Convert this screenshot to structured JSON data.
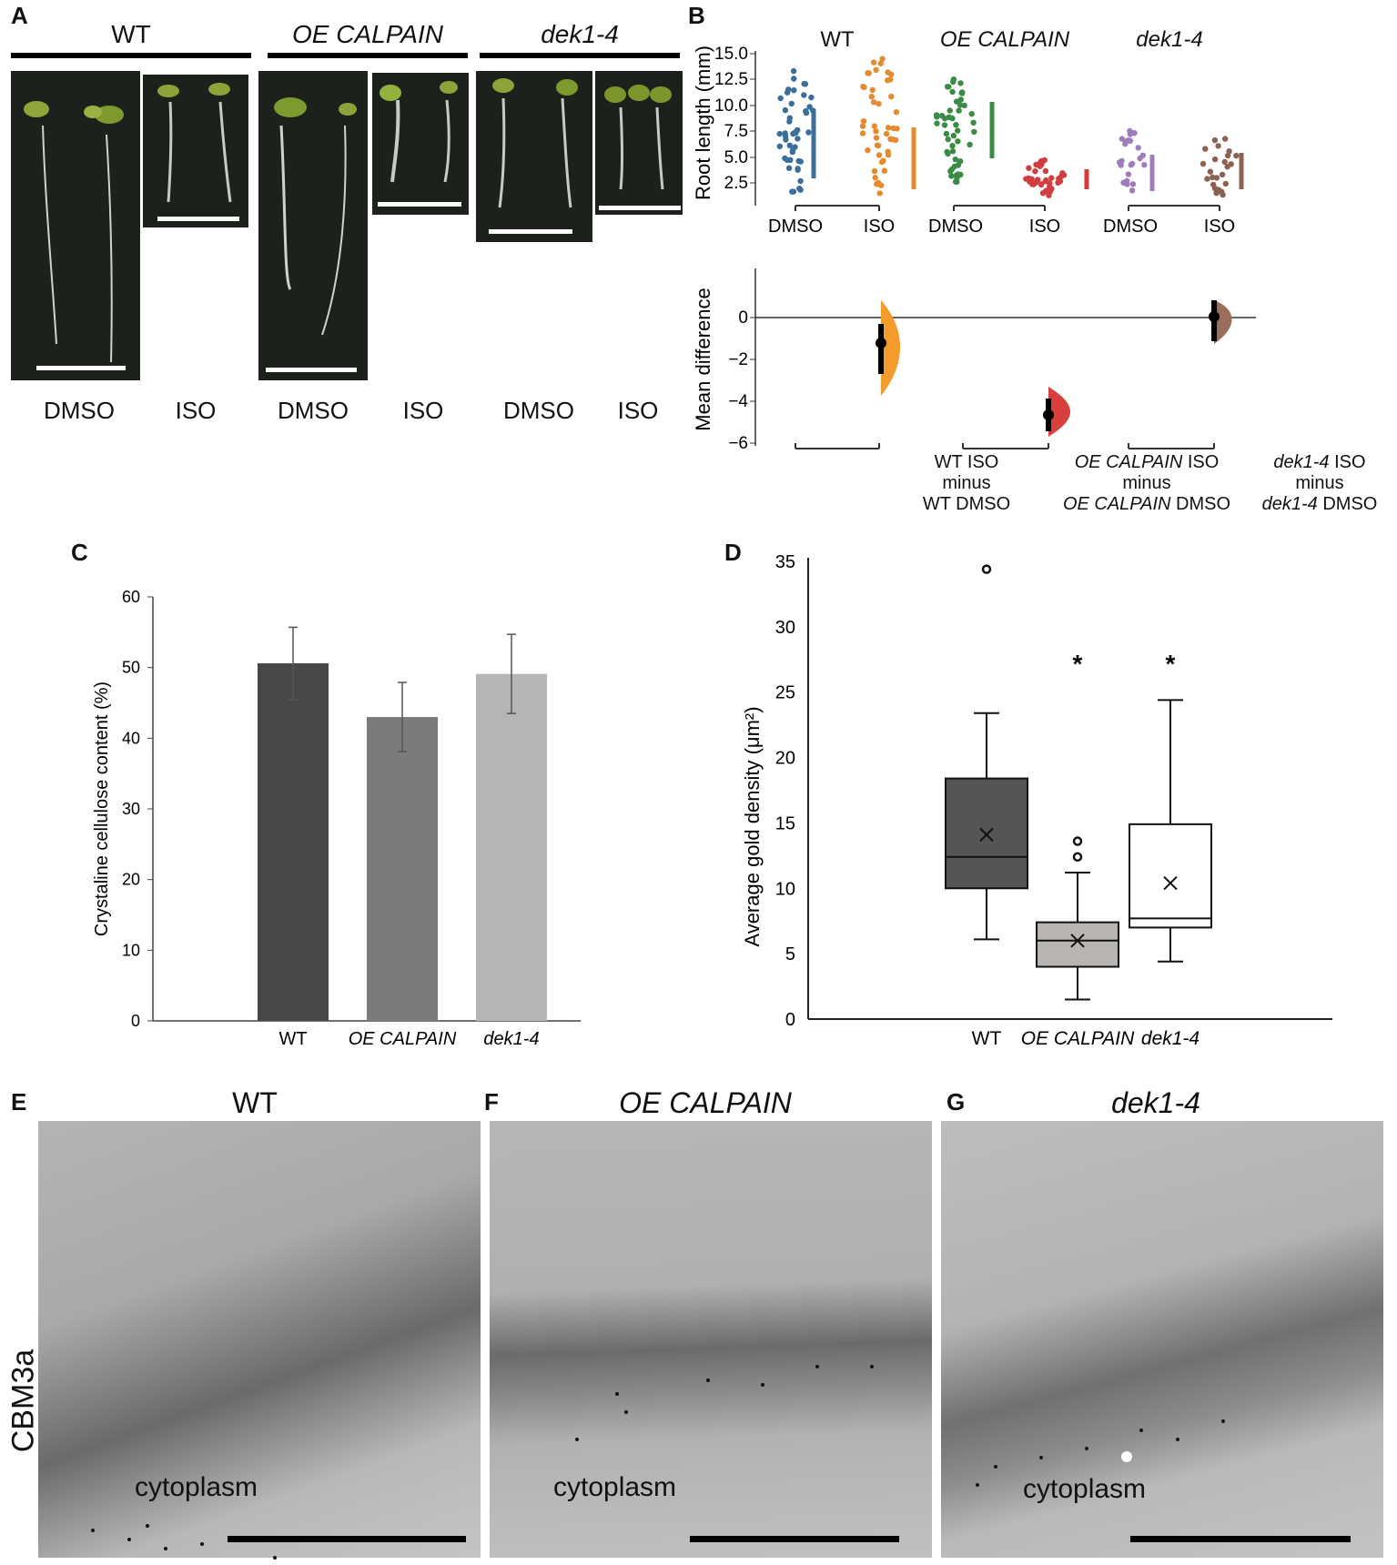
{
  "panel_a": {
    "letter": "A",
    "groups": [
      "WT",
      "OE CALPAIN",
      "dek1-4"
    ],
    "treatments": [
      "DMSO",
      "ISO",
      "DMSO",
      "ISO",
      "DMSO",
      "ISO"
    ]
  },
  "panel_b": {
    "letter": "B",
    "groups": [
      "WT",
      "OE CALPAIN",
      "dek1-4"
    ],
    "y_label": "Root length (mm)",
    "y_ticks": [
      "15.0",
      "12.5",
      "10.0",
      "7.5",
      "5.0",
      "2.5"
    ],
    "x_labels": [
      "DMSO",
      "ISO",
      "DMSO",
      "ISO",
      "DMSO",
      "ISO"
    ],
    "md_label": "Mean difference",
    "md_ticks": [
      "0",
      "−2",
      "−4",
      "−6"
    ],
    "comparisons": [
      {
        "line1_it": "",
        "line1": "WT ISO",
        "line2": "minus",
        "line3_it": "",
        "line3": "WT DMSO"
      },
      {
        "line1_it": "OE CALPAIN",
        "line1": " ISO",
        "line2": "minus",
        "line3_it": "OE CALPAIN",
        "line3": " DMSO"
      },
      {
        "line1_it": "dek1-4",
        "line1": " ISO",
        "line2": "minus",
        "line3_it": "dek1-4",
        "line3": " DMSO"
      }
    ]
  },
  "panel_c": {
    "letter": "C",
    "chart_data": {
      "type": "bar",
      "categories": [
        "WT",
        "OE CALPAIN",
        "dek1-4"
      ],
      "values": [
        50.6,
        43.0,
        49.1
      ],
      "errors": [
        5.1,
        4.9,
        5.6
      ],
      "ylabel": "Crystaline cellulose content (%)",
      "ylim": [
        0,
        60
      ],
      "yticks": [
        0,
        10,
        20,
        30,
        40,
        50,
        60
      ],
      "colors": [
        "#484848",
        "#7b7b7b",
        "#b5b5b5"
      ]
    }
  },
  "panel_d": {
    "letter": "D",
    "chart_data": {
      "type": "box",
      "categories": [
        "WT",
        "OE CALPAIN",
        "dek1-4"
      ],
      "ylabel": "Average gold density (μm²)",
      "ylim": [
        0,
        35
      ],
      "yticks": [
        0,
        5,
        10,
        15,
        20,
        25,
        30,
        35
      ],
      "boxes": [
        {
          "min": 6.1,
          "q1": 10.0,
          "median": 12.4,
          "q3": 18.4,
          "max": 23.4,
          "mean": 14.1,
          "outliers": [
            34.4
          ],
          "sig": "",
          "color": "#555555"
        },
        {
          "min": 1.5,
          "q1": 4.0,
          "median": 6.0,
          "q3": 7.4,
          "max": 11.2,
          "mean": 6.0,
          "outliers": [
            12.4,
            13.6
          ],
          "sig": "*",
          "color": "#b7b4b2"
        },
        {
          "min": 4.4,
          "q1": 7.0,
          "median": 7.7,
          "q3": 14.9,
          "max": 24.4,
          "mean": 10.4,
          "outliers": [],
          "sig": "*",
          "color": "#ffffff"
        }
      ]
    }
  },
  "panel_efg": {
    "side_label": "CBM3a",
    "panels": [
      {
        "letter": "E",
        "title": "WT",
        "caption": "cytoplasm"
      },
      {
        "letter": "F",
        "title": "OE CALPAIN",
        "caption": "cytoplasm"
      },
      {
        "letter": "G",
        "title": "dek1-4",
        "caption": "cytoplasm"
      }
    ]
  }
}
